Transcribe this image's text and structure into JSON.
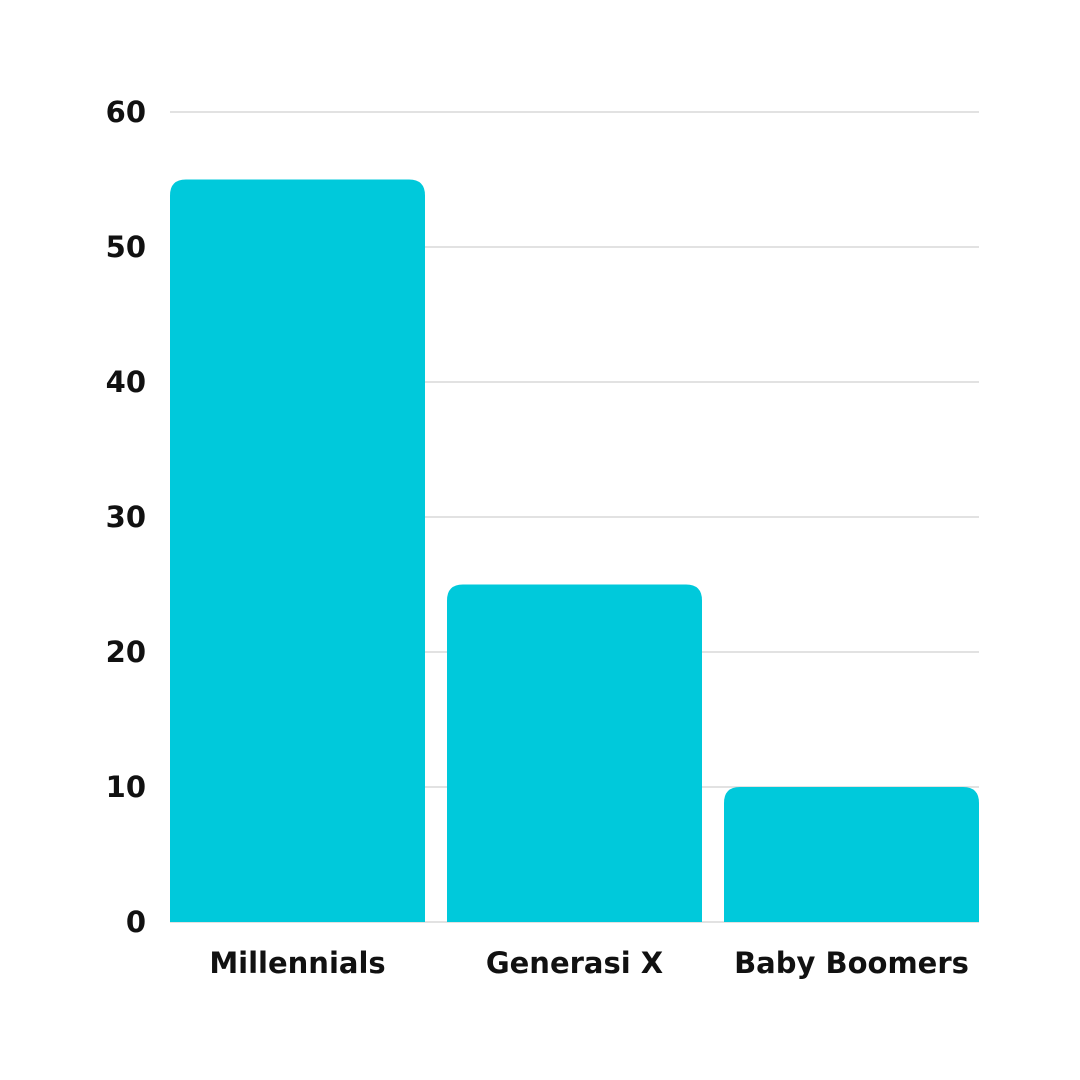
{
  "chart_data": {
    "type": "bar",
    "categories": [
      "Millennials",
      "Generasi X",
      "Baby Boomers"
    ],
    "values": [
      55,
      25,
      10
    ],
    "ylim": [
      0,
      60
    ],
    "yticks": [
      0,
      10,
      20,
      30,
      40,
      50,
      60
    ],
    "grid": true,
    "bar_color": "#00C9DB",
    "title": "",
    "xlabel": "",
    "ylabel": ""
  }
}
